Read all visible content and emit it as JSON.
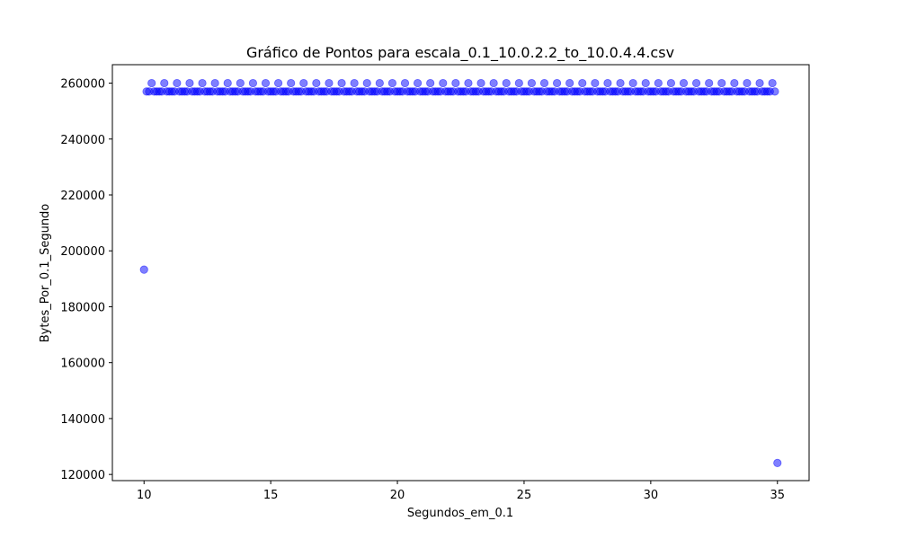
{
  "chart_data": {
    "type": "scatter",
    "title": "Gráfico de Pontos para escala_0.1_10.0.2.2_to_10.0.4.4.csv",
    "xlabel": "Segundos_em_0.1",
    "ylabel": "Bytes_Por_0.1_Segundo",
    "xlim": [
      8.75,
      36.25
    ],
    "ylim": [
      117800,
      266600
    ],
    "xticks": [
      10,
      15,
      20,
      25,
      30,
      35
    ],
    "yticks": [
      120000,
      140000,
      160000,
      180000,
      200000,
      220000,
      240000,
      260000
    ],
    "grid": false,
    "color": "#0000ff",
    "alpha": 0.5,
    "points": {
      "x_start": 10.0,
      "x_end": 35.0,
      "x_step": 0.1,
      "base_value": 257000,
      "peak_value": 260000,
      "peak_every": 5,
      "peak_offset": 3,
      "first_value": 193280,
      "last_value": 124100
    }
  }
}
